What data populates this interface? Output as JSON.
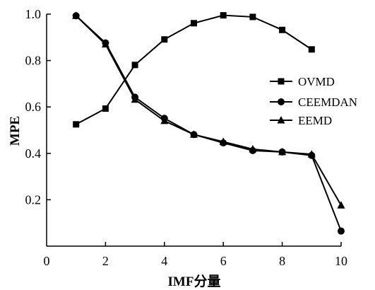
{
  "chart_data": {
    "type": "line",
    "title": "",
    "xlabel": "IMF分量",
    "ylabel": "MPE",
    "xlim": [
      0,
      10
    ],
    "ylim": [
      0,
      1.0
    ],
    "xticks": [
      "0",
      "2",
      "4",
      "6",
      "8",
      "10"
    ],
    "xtick_values": [
      0,
      2,
      4,
      6,
      8,
      10
    ],
    "yticks": [
      "0.2",
      "0.4",
      "0.6",
      "0.8",
      "1.0"
    ],
    "ytick_values": [
      0.2,
      0.4,
      0.6,
      0.8,
      1.0
    ],
    "grid": false,
    "legend_position": "right",
    "series": [
      {
        "name": "OVMD",
        "marker": "square",
        "x": [
          1,
          2,
          3,
          4,
          5,
          6,
          7,
          8,
          9
        ],
        "values": [
          0.525,
          0.593,
          0.781,
          0.891,
          0.961,
          0.995,
          0.988,
          0.932,
          0.848
        ]
      },
      {
        "name": "CEEMDAN",
        "marker": "circle",
        "x": [
          1,
          2,
          3,
          4,
          5,
          6,
          7,
          8,
          9,
          10
        ],
        "values": [
          0.993,
          0.876,
          0.642,
          0.551,
          0.481,
          0.445,
          0.412,
          0.406,
          0.391,
          0.065
        ]
      },
      {
        "name": "EEMD",
        "marker": "triangle",
        "x": [
          1,
          2,
          3,
          4,
          5,
          6,
          7,
          8,
          9,
          10
        ],
        "values": [
          0.993,
          0.87,
          0.632,
          0.54,
          0.481,
          0.45,
          0.418,
          0.406,
          0.396,
          0.176
        ]
      }
    ]
  }
}
